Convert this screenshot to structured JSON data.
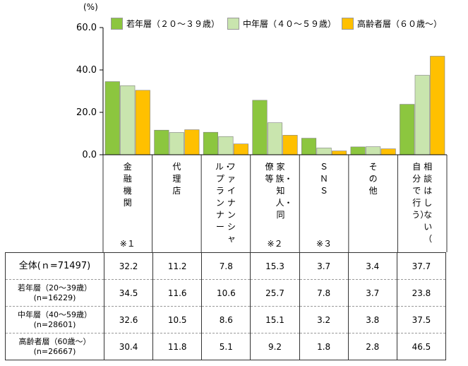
{
  "chart_data": {
    "type": "bar",
    "unit_label": "(%)",
    "ylim": [
      0,
      60
    ],
    "yticks": [
      "60.0",
      "40.0",
      "20.0",
      "0.0"
    ],
    "categories": [
      {
        "label": "金融機関",
        "note": "※１"
      },
      {
        "label": "代理店",
        "note": ""
      },
      {
        "label": "ファイナンシャル・プランナー",
        "note": ""
      },
      {
        "label": "家族・知人・同僚等",
        "note": "※２"
      },
      {
        "label": "ＳＮＳ",
        "note": "※３"
      },
      {
        "label": "その他",
        "note": ""
      },
      {
        "label": "相談はしない（自分で行う）",
        "note": ""
      }
    ],
    "series": [
      {
        "name": "若年層（２０～３９歳）",
        "color": "#8cc63f",
        "values": [
          34.5,
          11.6,
          10.6,
          25.7,
          7.8,
          3.7,
          23.8
        ]
      },
      {
        "name": "中年層（４０～５９歳）",
        "color": "#c9e5ae",
        "values": [
          32.6,
          10.5,
          8.6,
          15.1,
          3.2,
          3.8,
          37.5
        ]
      },
      {
        "name": "高齢者層（６０歳～）",
        "color": "#ffc000",
        "values": [
          30.4,
          11.8,
          5.1,
          9.2,
          1.8,
          2.8,
          46.5
        ]
      }
    ],
    "grid": false,
    "legend_position": "top"
  },
  "table": {
    "rows": [
      {
        "label_lines": [
          "全体(ｎ=71497)"
        ],
        "values": [
          "32.2",
          "11.2",
          "7.8",
          "15.3",
          "3.7",
          "3.4",
          "37.7"
        ]
      },
      {
        "label_lines": [
          "若年層（20～39歳）",
          "(n=16229)"
        ],
        "values": [
          "34.5",
          "11.6",
          "10.6",
          "25.7",
          "7.8",
          "3.7",
          "23.8"
        ]
      },
      {
        "label_lines": [
          "中年層（40～59歳）",
          "(n=28601)"
        ],
        "values": [
          "32.6",
          "10.5",
          "8.6",
          "15.1",
          "3.2",
          "3.8",
          "37.5"
        ]
      },
      {
        "label_lines": [
          "高齢者層（60歳～）",
          "(n=26667)"
        ],
        "values": [
          "30.4",
          "11.8",
          "5.1",
          "9.2",
          "1.8",
          "2.8",
          "46.5"
        ]
      }
    ]
  }
}
